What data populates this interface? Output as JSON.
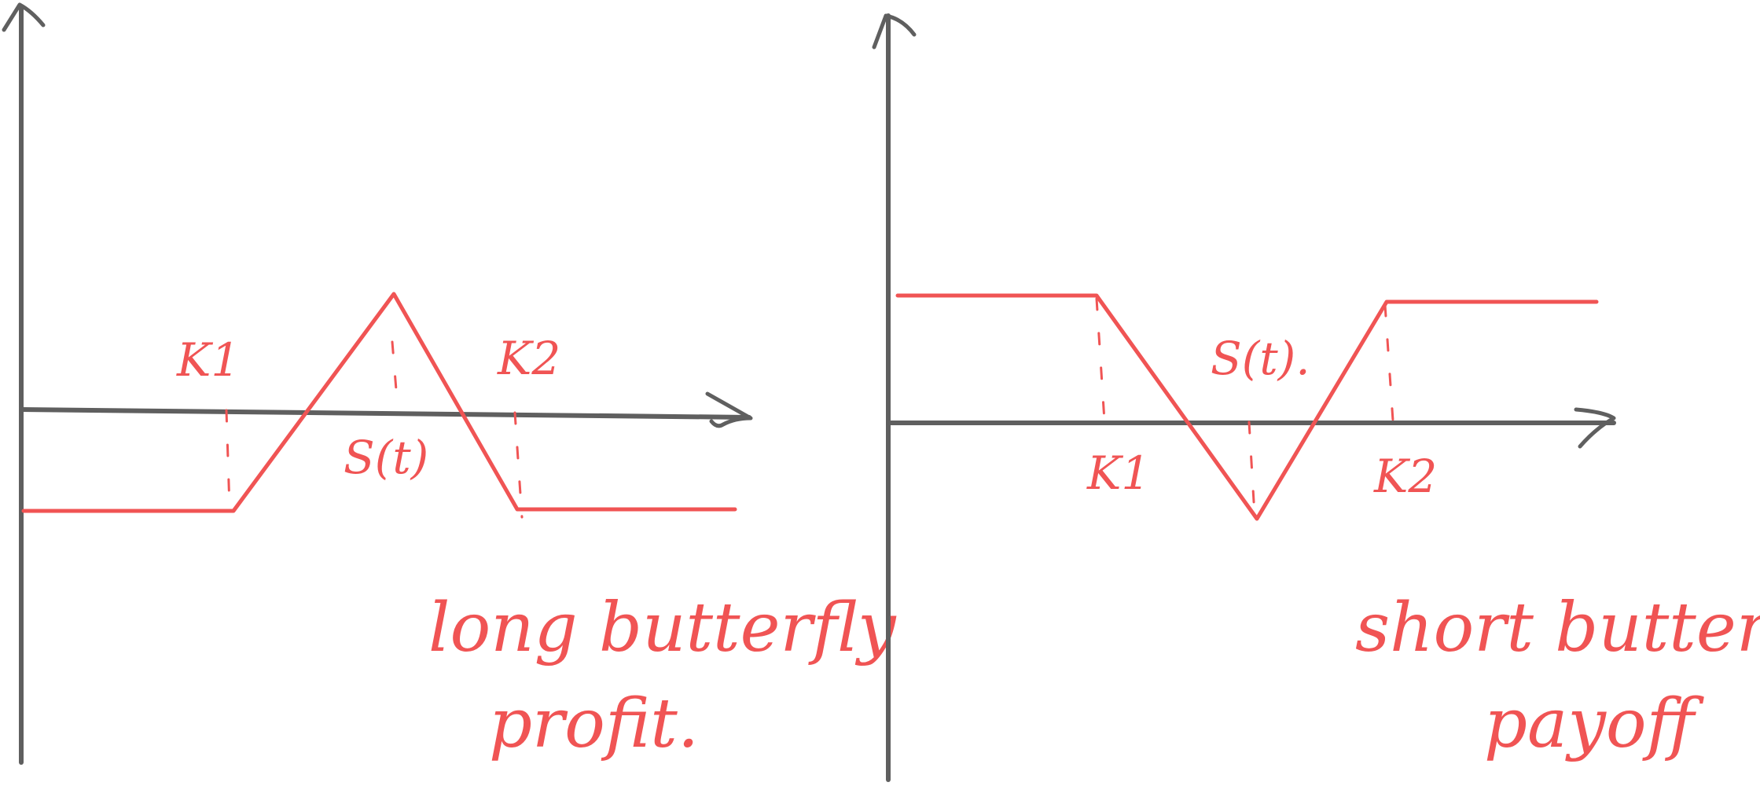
{
  "left_diagram": {
    "strike_1": "K1",
    "strike_2": "K2",
    "underlying": "S(t)",
    "caption_line1": "long butterfly",
    "caption_line2": "profit."
  },
  "right_diagram": {
    "strike_1": "K1",
    "strike_2": "K2",
    "underlying": "S(t).",
    "caption_line1": "short butterfly",
    "caption_line2": "payoff"
  },
  "colors": {
    "axis": "#5f5f5f",
    "payoff_line": "#f05454"
  }
}
